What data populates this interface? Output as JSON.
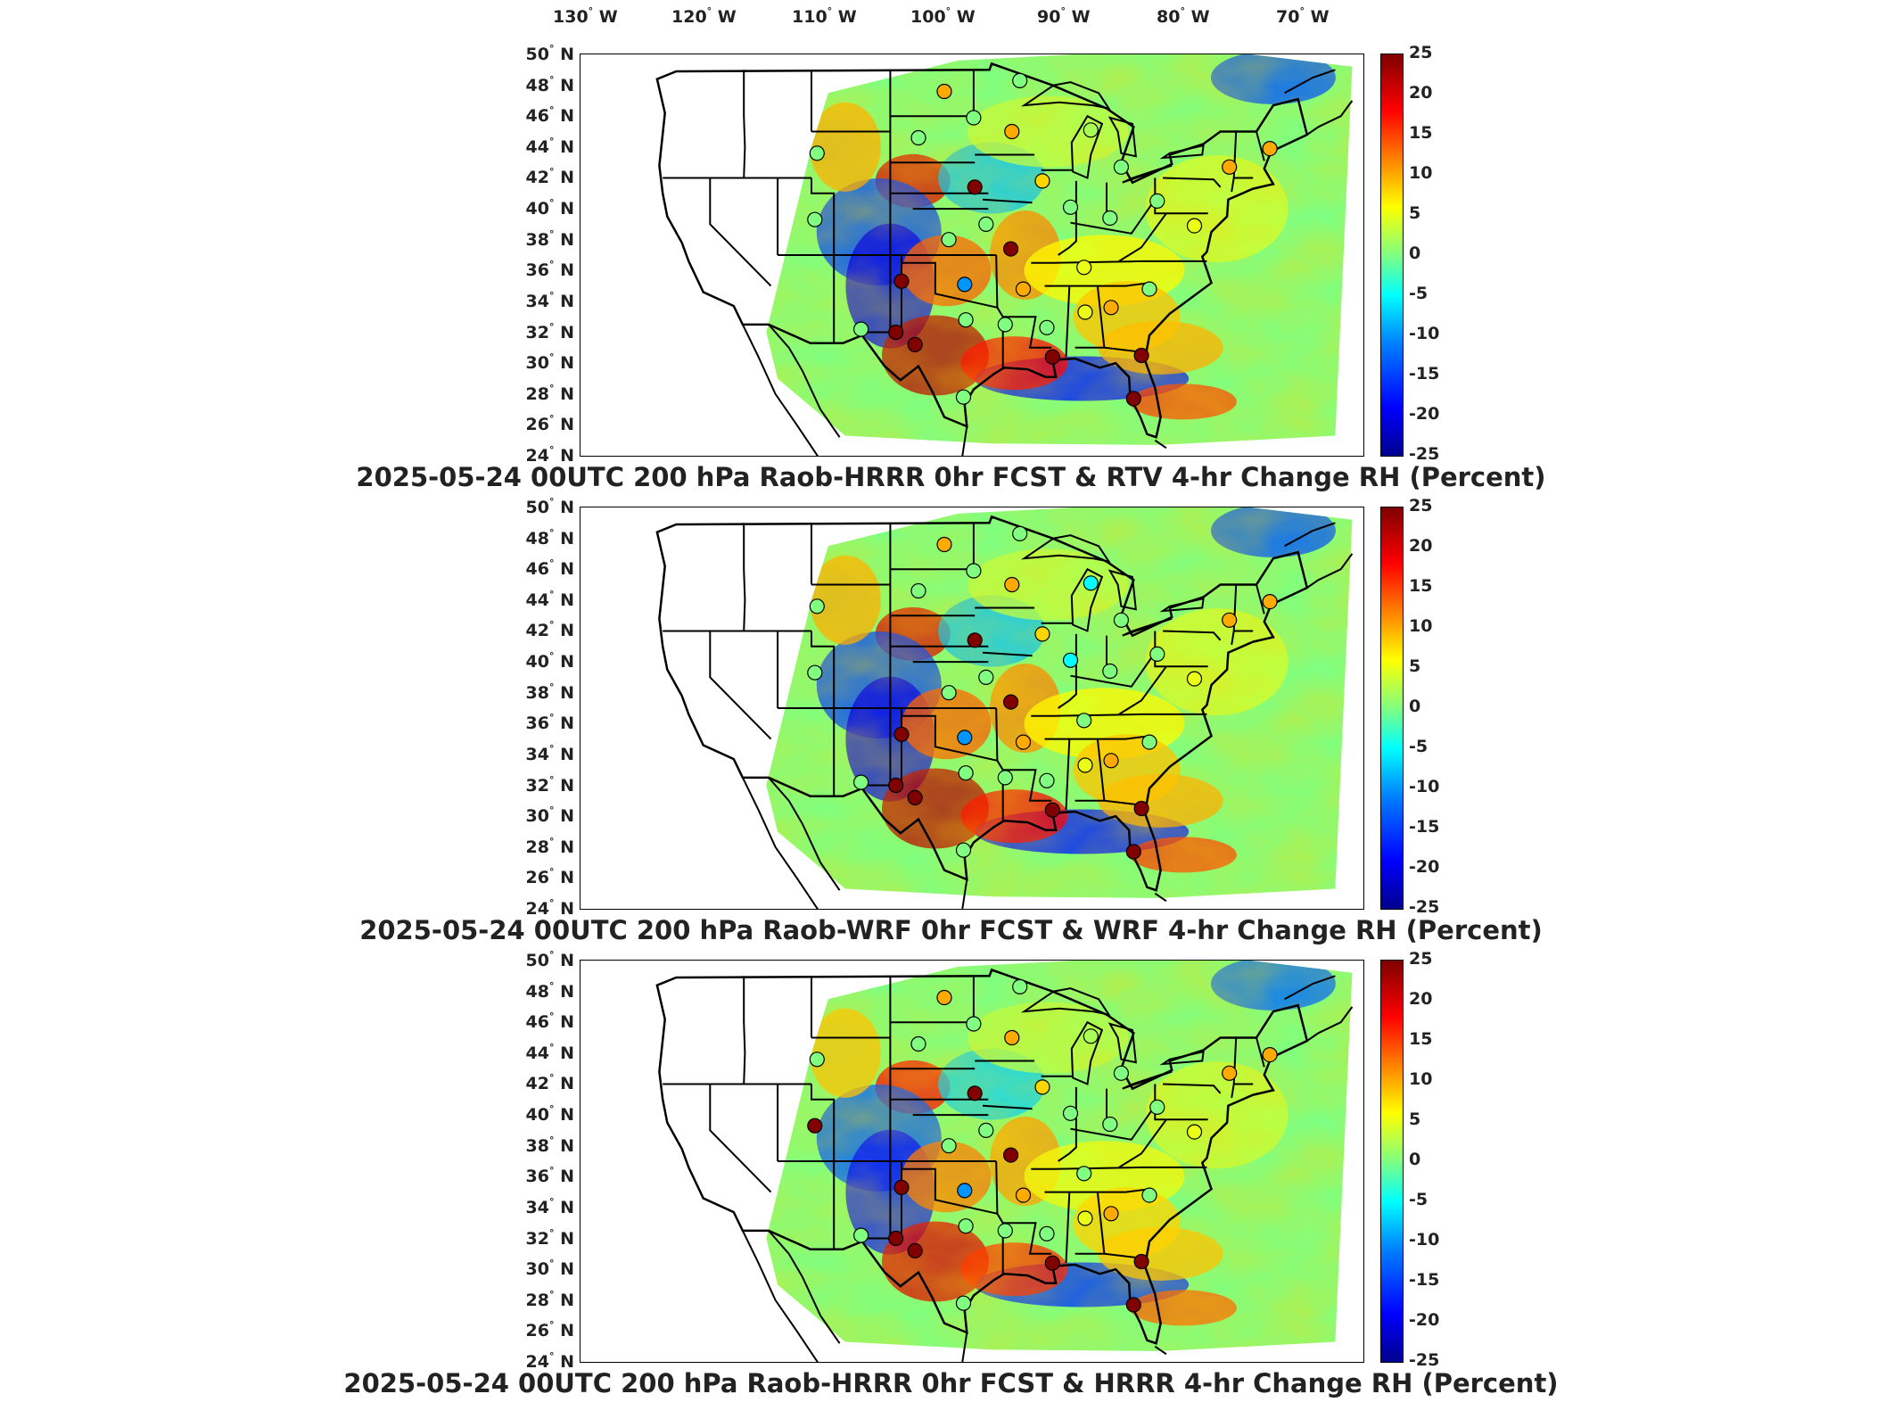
{
  "lon_labels": [
    "130",
    "120",
    "110",
    "100",
    "90",
    "80",
    "70"
  ],
  "lon_suffix": "W",
  "lat_labels": [
    "50",
    "48",
    "46",
    "44",
    "42",
    "40",
    "38",
    "36",
    "34",
    "32",
    "30",
    "28",
    "26",
    "24"
  ],
  "lat_suffix": "N",
  "colorbar_ticks": [
    "25",
    "20",
    "15",
    "10",
    "5",
    "0",
    "-5",
    "-10",
    "-15",
    "-20",
    "-25"
  ],
  "colorbar_range": [
    -25,
    25
  ],
  "colors": {
    "scale_low": "#00008f",
    "scale_mid": "#80ff80",
    "scale_high": "#800000",
    "outline": "#000000"
  },
  "panels": [
    {
      "title": "2025-05-24 00UTC 200 hPa Raob-HRRR 0hr FCST & RTV 4-hr Change RH (Percent)",
      "markers": [
        {
          "lon": -99.2,
          "lat": 47.6,
          "value": 10
        },
        {
          "lon": -96.6,
          "lat": 45.9,
          "value": 0
        },
        {
          "lon": -101.5,
          "lat": 44.6,
          "value": 0
        },
        {
          "lon": -110.5,
          "lat": 43.6,
          "value": 0
        },
        {
          "lon": -93.2,
          "lat": 45.0,
          "value": 10
        },
        {
          "lon": -92.5,
          "lat": 48.3,
          "value": 0
        },
        {
          "lon": -96.5,
          "lat": 41.4,
          "value": 25
        },
        {
          "lon": -90.5,
          "lat": 41.8,
          "value": 8
        },
        {
          "lon": -86.2,
          "lat": 45.1,
          "value": 2
        },
        {
          "lon": -83.5,
          "lat": 42.7,
          "value": 0
        },
        {
          "lon": -88.0,
          "lat": 40.1,
          "value": 0
        },
        {
          "lon": -84.5,
          "lat": 39.4,
          "value": 0
        },
        {
          "lon": -110.7,
          "lat": 39.3,
          "value": 0
        },
        {
          "lon": -98.8,
          "lat": 38.0,
          "value": 0
        },
        {
          "lon": -95.5,
          "lat": 39.0,
          "value": 0
        },
        {
          "lon": -93.3,
          "lat": 37.4,
          "value": 25
        },
        {
          "lon": -103.0,
          "lat": 35.3,
          "value": 25
        },
        {
          "lon": -97.4,
          "lat": 35.1,
          "value": -10
        },
        {
          "lon": -92.2,
          "lat": 34.8,
          "value": 10
        },
        {
          "lon": -86.8,
          "lat": 36.2,
          "value": 5
        },
        {
          "lon": -103.5,
          "lat": 32.0,
          "value": 25
        },
        {
          "lon": -101.8,
          "lat": 31.2,
          "value": 25
        },
        {
          "lon": -97.3,
          "lat": 32.8,
          "value": 0
        },
        {
          "lon": -93.8,
          "lat": 32.5,
          "value": 0
        },
        {
          "lon": -90.1,
          "lat": 32.3,
          "value": 0
        },
        {
          "lon": -86.7,
          "lat": 33.3,
          "value": 5
        },
        {
          "lon": -84.4,
          "lat": 33.6,
          "value": 10
        },
        {
          "lon": -81.0,
          "lat": 34.8,
          "value": 0
        },
        {
          "lon": -89.6,
          "lat": 30.4,
          "value": 25
        },
        {
          "lon": -81.7,
          "lat": 30.5,
          "value": 25
        },
        {
          "lon": -82.4,
          "lat": 27.7,
          "value": 25
        },
        {
          "lon": -97.5,
          "lat": 27.8,
          "value": 0
        },
        {
          "lon": -77.0,
          "lat": 38.9,
          "value": 5
        },
        {
          "lon": -80.3,
          "lat": 40.5,
          "value": 0
        },
        {
          "lon": -73.9,
          "lat": 42.7,
          "value": 10
        },
        {
          "lon": -70.3,
          "lat": 43.9,
          "value": 10
        },
        {
          "lon": -106.6,
          "lat": 32.2,
          "value": 0
        }
      ]
    },
    {
      "title": "2025-05-24 00UTC 200 hPa Raob-WRF 0hr FCST & WRF 4-hr Change RH (Percent)",
      "markers": [
        {
          "lon": -99.2,
          "lat": 47.6,
          "value": 10
        },
        {
          "lon": -96.6,
          "lat": 45.9,
          "value": 0
        },
        {
          "lon": -101.5,
          "lat": 44.6,
          "value": 0
        },
        {
          "lon": -110.5,
          "lat": 43.6,
          "value": 0
        },
        {
          "lon": -93.2,
          "lat": 45.0,
          "value": 10
        },
        {
          "lon": -92.5,
          "lat": 48.3,
          "value": 0
        },
        {
          "lon": -96.5,
          "lat": 41.4,
          "value": 25
        },
        {
          "lon": -90.5,
          "lat": 41.8,
          "value": 8
        },
        {
          "lon": -86.2,
          "lat": 45.1,
          "value": -5
        },
        {
          "lon": -83.5,
          "lat": 42.7,
          "value": 0
        },
        {
          "lon": -88.0,
          "lat": 40.1,
          "value": -5
        },
        {
          "lon": -84.5,
          "lat": 39.4,
          "value": 0
        },
        {
          "lon": -110.7,
          "lat": 39.3,
          "value": 0
        },
        {
          "lon": -98.8,
          "lat": 38.0,
          "value": 0
        },
        {
          "lon": -95.5,
          "lat": 39.0,
          "value": 0
        },
        {
          "lon": -93.3,
          "lat": 37.4,
          "value": 25
        },
        {
          "lon": -103.0,
          "lat": 35.3,
          "value": 25
        },
        {
          "lon": -97.4,
          "lat": 35.1,
          "value": -10
        },
        {
          "lon": -92.2,
          "lat": 34.8,
          "value": 10
        },
        {
          "lon": -86.8,
          "lat": 36.2,
          "value": 0
        },
        {
          "lon": -103.5,
          "lat": 32.0,
          "value": 25
        },
        {
          "lon": -101.8,
          "lat": 31.2,
          "value": 25
        },
        {
          "lon": -97.3,
          "lat": 32.8,
          "value": 0
        },
        {
          "lon": -93.8,
          "lat": 32.5,
          "value": 0
        },
        {
          "lon": -90.1,
          "lat": 32.3,
          "value": 0
        },
        {
          "lon": -86.7,
          "lat": 33.3,
          "value": 5
        },
        {
          "lon": -84.4,
          "lat": 33.6,
          "value": 10
        },
        {
          "lon": -81.0,
          "lat": 34.8,
          "value": 0
        },
        {
          "lon": -89.6,
          "lat": 30.4,
          "value": 25
        },
        {
          "lon": -81.7,
          "lat": 30.5,
          "value": 25
        },
        {
          "lon": -82.4,
          "lat": 27.7,
          "value": 25
        },
        {
          "lon": -97.5,
          "lat": 27.8,
          "value": 0
        },
        {
          "lon": -77.0,
          "lat": 38.9,
          "value": 5
        },
        {
          "lon": -80.3,
          "lat": 40.5,
          "value": 0
        },
        {
          "lon": -73.9,
          "lat": 42.7,
          "value": 10
        },
        {
          "lon": -70.3,
          "lat": 43.9,
          "value": 10
        },
        {
          "lon": -106.6,
          "lat": 32.2,
          "value": 0
        }
      ]
    },
    {
      "title": "2025-05-24 00UTC 200 hPa Raob-HRRR 0hr FCST & HRRR 4-hr Change RH (Percent)",
      "markers": [
        {
          "lon": -99.2,
          "lat": 47.6,
          "value": 10
        },
        {
          "lon": -96.6,
          "lat": 45.9,
          "value": 0
        },
        {
          "lon": -101.5,
          "lat": 44.6,
          "value": 0
        },
        {
          "lon": -110.5,
          "lat": 43.6,
          "value": 0
        },
        {
          "lon": -93.2,
          "lat": 45.0,
          "value": 10
        },
        {
          "lon": -92.5,
          "lat": 48.3,
          "value": 0
        },
        {
          "lon": -96.5,
          "lat": 41.4,
          "value": 25
        },
        {
          "lon": -90.5,
          "lat": 41.8,
          "value": 8
        },
        {
          "lon": -86.2,
          "lat": 45.1,
          "value": 2
        },
        {
          "lon": -83.5,
          "lat": 42.7,
          "value": 0
        },
        {
          "lon": -88.0,
          "lat": 40.1,
          "value": 0
        },
        {
          "lon": -84.5,
          "lat": 39.4,
          "value": 0
        },
        {
          "lon": -110.7,
          "lat": 39.3,
          "value": 25
        },
        {
          "lon": -98.8,
          "lat": 38.0,
          "value": 0
        },
        {
          "lon": -95.5,
          "lat": 39.0,
          "value": 0
        },
        {
          "lon": -93.3,
          "lat": 37.4,
          "value": 25
        },
        {
          "lon": -103.0,
          "lat": 35.3,
          "value": 25
        },
        {
          "lon": -97.4,
          "lat": 35.1,
          "value": -10
        },
        {
          "lon": -92.2,
          "lat": 34.8,
          "value": 10
        },
        {
          "lon": -86.8,
          "lat": 36.2,
          "value": 0
        },
        {
          "lon": -103.5,
          "lat": 32.0,
          "value": 25
        },
        {
          "lon": -101.8,
          "lat": 31.2,
          "value": 25
        },
        {
          "lon": -97.3,
          "lat": 32.8,
          "value": 0
        },
        {
          "lon": -93.8,
          "lat": 32.5,
          "value": 0
        },
        {
          "lon": -90.1,
          "lat": 32.3,
          "value": 0
        },
        {
          "lon": -86.7,
          "lat": 33.3,
          "value": 5
        },
        {
          "lon": -84.4,
          "lat": 33.6,
          "value": 10
        },
        {
          "lon": -81.0,
          "lat": 34.8,
          "value": 0
        },
        {
          "lon": -89.6,
          "lat": 30.4,
          "value": 25
        },
        {
          "lon": -81.7,
          "lat": 30.5,
          "value": 25
        },
        {
          "lon": -82.4,
          "lat": 27.7,
          "value": 25
        },
        {
          "lon": -97.5,
          "lat": 27.8,
          "value": 0
        },
        {
          "lon": -77.0,
          "lat": 38.9,
          "value": 5
        },
        {
          "lon": -80.3,
          "lat": 40.5,
          "value": 0
        },
        {
          "lon": -73.9,
          "lat": 42.7,
          "value": 10
        },
        {
          "lon": -70.3,
          "lat": 43.9,
          "value": 10
        },
        {
          "lon": -106.6,
          "lat": 32.2,
          "value": 0
        }
      ]
    }
  ]
}
